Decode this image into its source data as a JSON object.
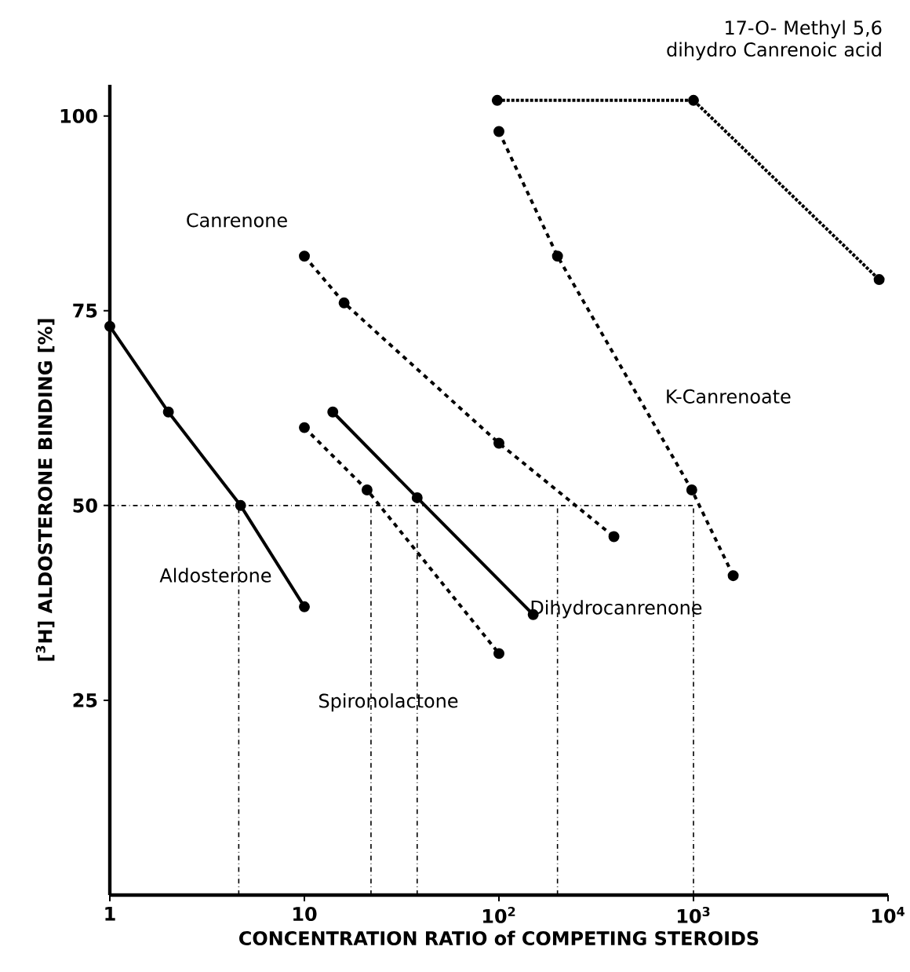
{
  "chart_data": {
    "type": "line",
    "xlabel": "CONCENTRATION RATIO of COMPETING STEROIDS",
    "ylabel": "[$^{3}$H] ALDOSTERONE BINDING [%]",
    "log": "x",
    "xlim": [
      1,
      10000
    ],
    "ylim": [
      0,
      104
    ],
    "xticks": [
      1,
      10,
      {
        "value": 100,
        "label": "10$^{2}$"
      },
      {
        "value": 1000,
        "label": "10$^{3}$"
      },
      {
        "value": 10000,
        "label": "10$^{4}$"
      }
    ],
    "yticks": [
      25,
      50,
      75,
      100
    ],
    "marker": "circle",
    "legend": false,
    "grid": false,
    "series": [
      {
        "name": "Aldosterone",
        "color": "#000000",
        "line_style": "solid",
        "x": [
          1,
          2,
          4.7,
          10
        ],
        "values": [
          73,
          62,
          50,
          37
        ]
      },
      {
        "name": "Canrenone",
        "color": "#000000",
        "line_style": "dashed",
        "x": [
          10,
          16,
          100,
          390
        ],
        "values": [
          82,
          76,
          58,
          46
        ]
      },
      {
        "name": "Spironolactone",
        "color": "#000000",
        "line_style": "dashed",
        "x": [
          10,
          21,
          100
        ],
        "values": [
          60,
          52,
          31
        ]
      },
      {
        "name": "Dihydrocanrenone",
        "color": "#000000",
        "line_style": "solid",
        "x": [
          14,
          38,
          150
        ],
        "values": [
          62,
          51,
          36
        ]
      },
      {
        "name": "K-Canrenoate",
        "color": "#000000",
        "line_style": "dashed",
        "x": [
          100,
          200,
          980,
          1600
        ],
        "values": [
          98,
          82,
          52,
          41
        ]
      },
      {
        "name": "17-O- Methyl 5,6 dihydro Canrenoic acid",
        "color": "#000000",
        "line_style": "dotted",
        "x": [
          98,
          1000,
          9000
        ],
        "values": [
          102,
          102,
          79
        ]
      }
    ],
    "ref_lines": [
      {
        "axis": "y",
        "value": 50,
        "line_style": "dashdotted"
      },
      {
        "axis": "x",
        "value": 4.6,
        "line_style": "dashdotted"
      },
      {
        "axis": "x",
        "value": 22,
        "line_style": "dashdotted"
      },
      {
        "axis": "x",
        "value": 38,
        "line_style": "dashdotted"
      },
      {
        "axis": "x",
        "value": 200,
        "line_style": "dashdotted"
      },
      {
        "axis": "x",
        "value": 1000,
        "line_style": "dashdotted"
      }
    ]
  }
}
